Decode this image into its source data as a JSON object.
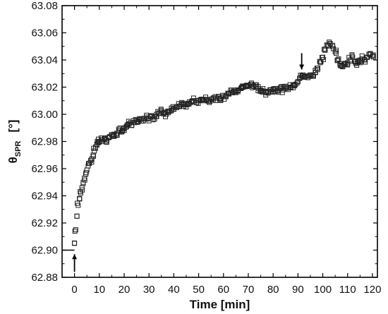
{
  "chart_data": {
    "type": "scatter",
    "xlabel": "Time [min]",
    "ylabel": {
      "symbol": "θ",
      "subscript": "SPR",
      "unit": "[°]"
    },
    "xlim": [
      -5,
      122
    ],
    "ylim": [
      62.88,
      63.08
    ],
    "xticks": [
      "0",
      "10",
      "20",
      "30",
      "40",
      "50",
      "60",
      "70",
      "80",
      "90",
      "100",
      "110",
      "120"
    ],
    "yticks": [
      "62.88",
      "62.90",
      "62.92",
      "62.94",
      "62.96",
      "62.98",
      "63.00",
      "63.02",
      "63.04",
      "63.06",
      "63.08"
    ],
    "baseline": {
      "x": [
        -5,
        0
      ],
      "y": 62.9
    },
    "arrows": [
      {
        "x": 0,
        "direction": "up",
        "y_from": 62.884,
        "y_to": 62.897
      },
      {
        "x": 91.5,
        "direction": "down",
        "y_from": 63.045,
        "y_to": 63.033
      }
    ],
    "marker": "open-square",
    "series": [
      {
        "x": [
          0,
          0.5,
          1,
          1.5,
          2,
          2.5,
          3,
          3.5,
          4,
          4.5,
          5,
          5.5,
          6,
          6.5,
          7,
          7.5,
          8,
          8.5,
          9,
          9.5,
          10,
          11,
          12,
          13,
          14,
          15,
          16,
          17,
          18,
          19,
          20,
          21,
          22,
          23,
          24,
          25,
          26,
          27,
          28,
          29,
          30,
          31,
          32,
          33,
          34,
          35,
          36,
          37,
          38,
          39,
          40,
          41,
          42,
          43,
          44,
          45,
          46,
          47,
          48,
          49,
          50,
          51,
          52,
          53,
          54,
          55,
          56,
          57,
          58,
          59,
          60,
          61,
          62,
          63,
          64,
          65,
          66,
          67,
          68,
          69,
          70,
          71,
          72,
          73,
          74,
          75,
          76,
          77,
          78,
          79,
          80,
          81,
          82,
          83,
          84,
          85,
          86,
          87,
          88,
          89,
          90,
          91,
          92,
          93,
          94,
          95,
          96,
          97,
          98,
          99,
          100,
          101,
          102,
          103,
          104,
          105,
          106,
          107,
          108,
          109,
          110,
          111,
          112,
          113,
          114,
          115,
          116,
          117,
          118,
          119,
          120
        ],
        "y": [
          62.905,
          62.915,
          62.925,
          62.933,
          62.938,
          62.942,
          62.946,
          62.95,
          62.953,
          62.956,
          62.959,
          62.962,
          62.964,
          62.966,
          62.967,
          62.97,
          62.973,
          62.976,
          62.978,
          62.979,
          62.98,
          62.981,
          62.982,
          62.981,
          62.983,
          62.985,
          62.984,
          62.986,
          62.988,
          62.987,
          62.99,
          62.991,
          62.993,
          62.992,
          62.994,
          62.995,
          62.996,
          62.995,
          62.997,
          62.998,
          62.997,
          62.999,
          62.998,
          63.0,
          63.001,
          63.002,
          63.001,
          63.0,
          63.002,
          63.003,
          63.004,
          63.005,
          63.006,
          63.007,
          63.006,
          63.007,
          63.008,
          63.009,
          63.01,
          63.01,
          63.01,
          63.011,
          63.01,
          63.011,
          63.01,
          63.011,
          63.012,
          63.012,
          63.013,
          63.012,
          63.013,
          63.014,
          63.015,
          63.016,
          63.017,
          63.016,
          63.018,
          63.019,
          63.02,
          63.021,
          63.021,
          63.022,
          63.021,
          63.02,
          63.019,
          63.018,
          63.017,
          63.016,
          63.017,
          63.018,
          63.018,
          63.019,
          63.018,
          63.019,
          63.018,
          63.019,
          63.02,
          63.02,
          63.021,
          63.022,
          63.024,
          63.027,
          63.029,
          63.028,
          63.027,
          63.028,
          63.029,
          63.031,
          63.034,
          63.038,
          63.042,
          63.048,
          63.051,
          63.052,
          63.05,
          63.046,
          63.04,
          63.036,
          63.035,
          63.037,
          63.038,
          63.04,
          63.042,
          63.039,
          63.038,
          63.04,
          63.041,
          63.04,
          63.042,
          63.044,
          63.043
        ]
      }
    ]
  }
}
